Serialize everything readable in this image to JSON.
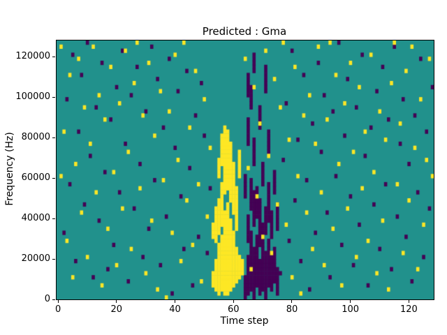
{
  "chart_data": {
    "type": "heatmap",
    "title": "Predicted : Gma",
    "xlabel": "Time step",
    "ylabel": "Frequency (Hz)",
    "x_range": [
      0,
      129
    ],
    "y_range": [
      0,
      128000
    ],
    "grid_cols": 129,
    "grid_rows": 64,
    "hz_per_row": 2000,
    "x_ticks": [
      0,
      20,
      40,
      60,
      80,
      100,
      120
    ],
    "y_ticks": [
      0,
      20000,
      40000,
      60000,
      80000,
      100000,
      120000
    ],
    "colors": {
      "background": "#21918c",
      "high": "#fde725",
      "low": "#440154",
      "frame": "#000000"
    },
    "legend": "none",
    "yellow_cells": [
      [
        1,
        62
      ],
      [
        1,
        30
      ],
      [
        2,
        41
      ],
      [
        3,
        14
      ],
      [
        4,
        55
      ],
      [
        5,
        5
      ],
      [
        6,
        33
      ],
      [
        7,
        59
      ],
      [
        8,
        21
      ],
      [
        9,
        47
      ],
      [
        10,
        10
      ],
      [
        11,
        38
      ],
      [
        12,
        62
      ],
      [
        13,
        26
      ],
      [
        14,
        50
      ],
      [
        15,
        3
      ],
      [
        16,
        44
      ],
      [
        17,
        17
      ],
      [
        18,
        57
      ],
      [
        19,
        31
      ],
      [
        20,
        8
      ],
      [
        21,
        48
      ],
      [
        22,
        22
      ],
      [
        23,
        61
      ],
      [
        24,
        36
      ],
      [
        25,
        12
      ],
      [
        26,
        53
      ],
      [
        27,
        63
      ],
      [
        28,
        27
      ],
      [
        29,
        45
      ],
      [
        30,
        6
      ],
      [
        31,
        58
      ],
      [
        32,
        19
      ],
      [
        33,
        40
      ],
      [
        34,
        2
      ],
      [
        35,
        51
      ],
      [
        36,
        29
      ],
      [
        37,
        0
      ],
      [
        38,
        46
      ],
      [
        39,
        16
      ],
      [
        40,
        60
      ],
      [
        41,
        34
      ],
      [
        42,
        9
      ],
      [
        43,
        63
      ],
      [
        44,
        24
      ],
      [
        45,
        42
      ],
      [
        46,
        13
      ],
      [
        47,
        56
      ],
      [
        48,
        28
      ],
      [
        49,
        4
      ],
      [
        50,
        49
      ],
      [
        51,
        20
      ],
      [
        52,
        37
      ],
      [
        64,
        59
      ],
      [
        65,
        32
      ],
      [
        66,
        7
      ],
      [
        67,
        52
      ],
      [
        68,
        25
      ],
      [
        69,
        43
      ],
      [
        70,
        15
      ],
      [
        71,
        61
      ],
      [
        72,
        35
      ],
      [
        73,
        11
      ],
      [
        74,
        54
      ],
      [
        75,
        23
      ],
      [
        76,
        47
      ],
      [
        77,
        63
      ],
      [
        78,
        18
      ],
      [
        79,
        39
      ],
      [
        80,
        5
      ],
      [
        81,
        57
      ],
      [
        82,
        30
      ],
      [
        83,
        1
      ],
      [
        84,
        45
      ],
      [
        85,
        21
      ],
      [
        86,
        50
      ],
      [
        87,
        12
      ],
      [
        88,
        38
      ],
      [
        89,
        62
      ],
      [
        90,
        26
      ],
      [
        91,
        8
      ],
      [
        92,
        44
      ],
      [
        93,
        63
      ],
      [
        94,
        17
      ],
      [
        95,
        55
      ],
      [
        96,
        33
      ],
      [
        97,
        3
      ],
      [
        98,
        48
      ],
      [
        99,
        22
      ],
      [
        100,
        58
      ],
      [
        101,
        36
      ],
      [
        102,
        10
      ],
      [
        103,
        52
      ],
      [
        104,
        27
      ],
      [
        105,
        41
      ],
      [
        106,
        14
      ],
      [
        107,
        60
      ],
      [
        108,
        31
      ],
      [
        109,
        6
      ],
      [
        110,
        46
      ],
      [
        111,
        19
      ],
      [
        112,
        39
      ],
      [
        113,
        2
      ],
      [
        114,
        53
      ],
      [
        115,
        63
      ],
      [
        116,
        28
      ],
      [
        117,
        43
      ],
      [
        118,
        11
      ],
      [
        119,
        56
      ],
      [
        120,
        24
      ],
      [
        121,
        62
      ],
      [
        122,
        37
      ],
      [
        123,
        7
      ],
      [
        124,
        49
      ],
      [
        125,
        18
      ],
      [
        126,
        34
      ],
      [
        127,
        59
      ],
      [
        128,
        30
      ]
    ],
    "purple_cells": [
      [
        2,
        16
      ],
      [
        3,
        49
      ],
      [
        4,
        28
      ],
      [
        5,
        60
      ],
      [
        6,
        9
      ],
      [
        7,
        41
      ],
      [
        8,
        55
      ],
      [
        9,
        23
      ],
      [
        10,
        63
      ],
      [
        11,
        35
      ],
      [
        12,
        5
      ],
      [
        13,
        47
      ],
      [
        14,
        19
      ],
      [
        15,
        58
      ],
      [
        16,
        31
      ],
      [
        17,
        7
      ],
      [
        18,
        44
      ],
      [
        19,
        13
      ],
      [
        20,
        52
      ],
      [
        21,
        26
      ],
      [
        22,
        61
      ],
      [
        23,
        38
      ],
      [
        24,
        4
      ],
      [
        25,
        50
      ],
      [
        26,
        22
      ],
      [
        27,
        57
      ],
      [
        28,
        33
      ],
      [
        29,
        10
      ],
      [
        30,
        46
      ],
      [
        31,
        17
      ],
      [
        32,
        62
      ],
      [
        33,
        29
      ],
      [
        34,
        54
      ],
      [
        35,
        8
      ],
      [
        36,
        42
      ],
      [
        37,
        20
      ],
      [
        38,
        59
      ],
      [
        39,
        1
      ],
      [
        40,
        37
      ],
      [
        41,
        51
      ],
      [
        42,
        25
      ],
      [
        43,
        12
      ],
      [
        44,
        56
      ],
      [
        45,
        32
      ],
      [
        46,
        3
      ],
      [
        47,
        45
      ],
      [
        48,
        15
      ],
      [
        49,
        53
      ],
      [
        50,
        40
      ],
      [
        51,
        11
      ],
      [
        52,
        27
      ],
      [
        76,
        6
      ],
      [
        77,
        34
      ],
      [
        78,
        48
      ],
      [
        79,
        14
      ],
      [
        80,
        61
      ],
      [
        81,
        24
      ],
      [
        82,
        39
      ],
      [
        83,
        9
      ],
      [
        84,
        55
      ],
      [
        85,
        29
      ],
      [
        86,
        2
      ],
      [
        87,
        43
      ],
      [
        88,
        16
      ],
      [
        89,
        58
      ],
      [
        90,
        36
      ],
      [
        91,
        50
      ],
      [
        92,
        21
      ],
      [
        93,
        5
      ],
      [
        94,
        46
      ],
      [
        95,
        30
      ],
      [
        96,
        63
      ],
      [
        97,
        13
      ],
      [
        98,
        40
      ],
      [
        99,
        54
      ],
      [
        100,
        25
      ],
      [
        101,
        8
      ],
      [
        102,
        47
      ],
      [
        103,
        18
      ],
      [
        104,
        60
      ],
      [
        105,
        35
      ],
      [
        106,
        3
      ],
      [
        107,
        42
      ],
      [
        108,
        23
      ],
      [
        109,
        51
      ],
      [
        110,
        12
      ],
      [
        111,
        57
      ],
      [
        112,
        28
      ],
      [
        113,
        44
      ],
      [
        114,
        7
      ],
      [
        115,
        62
      ],
      [
        116,
        20
      ],
      [
        117,
        38
      ],
      [
        118,
        49
      ],
      [
        119,
        15
      ],
      [
        120,
        33
      ],
      [
        121,
        4
      ],
      [
        122,
        45
      ],
      [
        123,
        26
      ],
      [
        124,
        59
      ],
      [
        125,
        10
      ],
      [
        126,
        41
      ],
      [
        127,
        22
      ],
      [
        128,
        52
      ]
    ],
    "yellow_runs": [
      {
        "col": 53,
        "rows": [
          [
            3,
            6
          ],
          [
            15,
            18
          ]
        ]
      },
      {
        "col": 54,
        "rows": [
          [
            2,
            9
          ],
          [
            14,
            22
          ]
        ]
      },
      {
        "col": 55,
        "rows": [
          [
            1,
            13
          ],
          [
            16,
            24
          ],
          [
            30,
            34
          ]
        ]
      },
      {
        "col": 56,
        "rows": [
          [
            2,
            15
          ],
          [
            18,
            28
          ],
          [
            33,
            40
          ]
        ]
      },
      {
        "col": 57,
        "rows": [
          [
            1,
            21
          ],
          [
            26,
            42
          ]
        ]
      },
      {
        "col": 58,
        "rows": [
          [
            1,
            23
          ],
          [
            27,
            41
          ]
        ]
      },
      {
        "col": 59,
        "rows": [
          [
            2,
            19
          ],
          [
            24,
            38
          ]
        ]
      },
      {
        "col": 60,
        "rows": [
          [
            3,
            16
          ],
          [
            21,
            33
          ]
        ]
      },
      {
        "col": 61,
        "rows": [
          [
            4,
            12
          ],
          [
            17,
            27
          ]
        ]
      },
      {
        "col": 62,
        "rows": [
          [
            5,
            10
          ],
          [
            30,
            36
          ]
        ]
      },
      {
        "col": 63,
        "rows": [
          [
            6,
            9
          ]
        ]
      }
    ],
    "purple_runs": [
      {
        "col": 64,
        "rows": [
          [
            0,
            5
          ],
          [
            25,
            30
          ]
        ]
      },
      {
        "col": 65,
        "rows": [
          [
            1,
            10
          ],
          [
            14,
            20
          ],
          [
            38,
            44
          ],
          [
            50,
            55
          ]
        ]
      },
      {
        "col": 66,
        "rows": [
          [
            2,
            16
          ],
          [
            22,
            29
          ],
          [
            47,
            52
          ]
        ]
      },
      {
        "col": 67,
        "rows": [
          [
            0,
            12
          ],
          [
            18,
            26
          ],
          [
            33,
            39
          ],
          [
            56,
            60
          ]
        ]
      },
      {
        "col": 68,
        "rows": [
          [
            3,
            15
          ],
          [
            20,
            27
          ]
        ]
      },
      {
        "col": 69,
        "rows": [
          [
            1,
            9
          ],
          [
            13,
            24
          ],
          [
            42,
            47
          ]
        ]
      },
      {
        "col": 70,
        "rows": [
          [
            2,
            18
          ],
          [
            28,
            33
          ]
        ]
      },
      {
        "col": 71,
        "rows": [
          [
            0,
            11
          ],
          [
            16,
            22
          ],
          [
            51,
            57
          ]
        ]
      },
      {
        "col": 72,
        "rows": [
          [
            3,
            14
          ],
          [
            19,
            28
          ],
          [
            36,
            41
          ]
        ]
      },
      {
        "col": 73,
        "rows": [
          [
            2,
            10
          ],
          [
            15,
            21
          ]
        ]
      },
      {
        "col": 74,
        "rows": [
          [
            4,
            12
          ],
          [
            26,
            31
          ]
        ]
      },
      {
        "col": 75,
        "rows": [
          [
            1,
            7
          ],
          [
            17,
            23
          ]
        ]
      }
    ]
  }
}
